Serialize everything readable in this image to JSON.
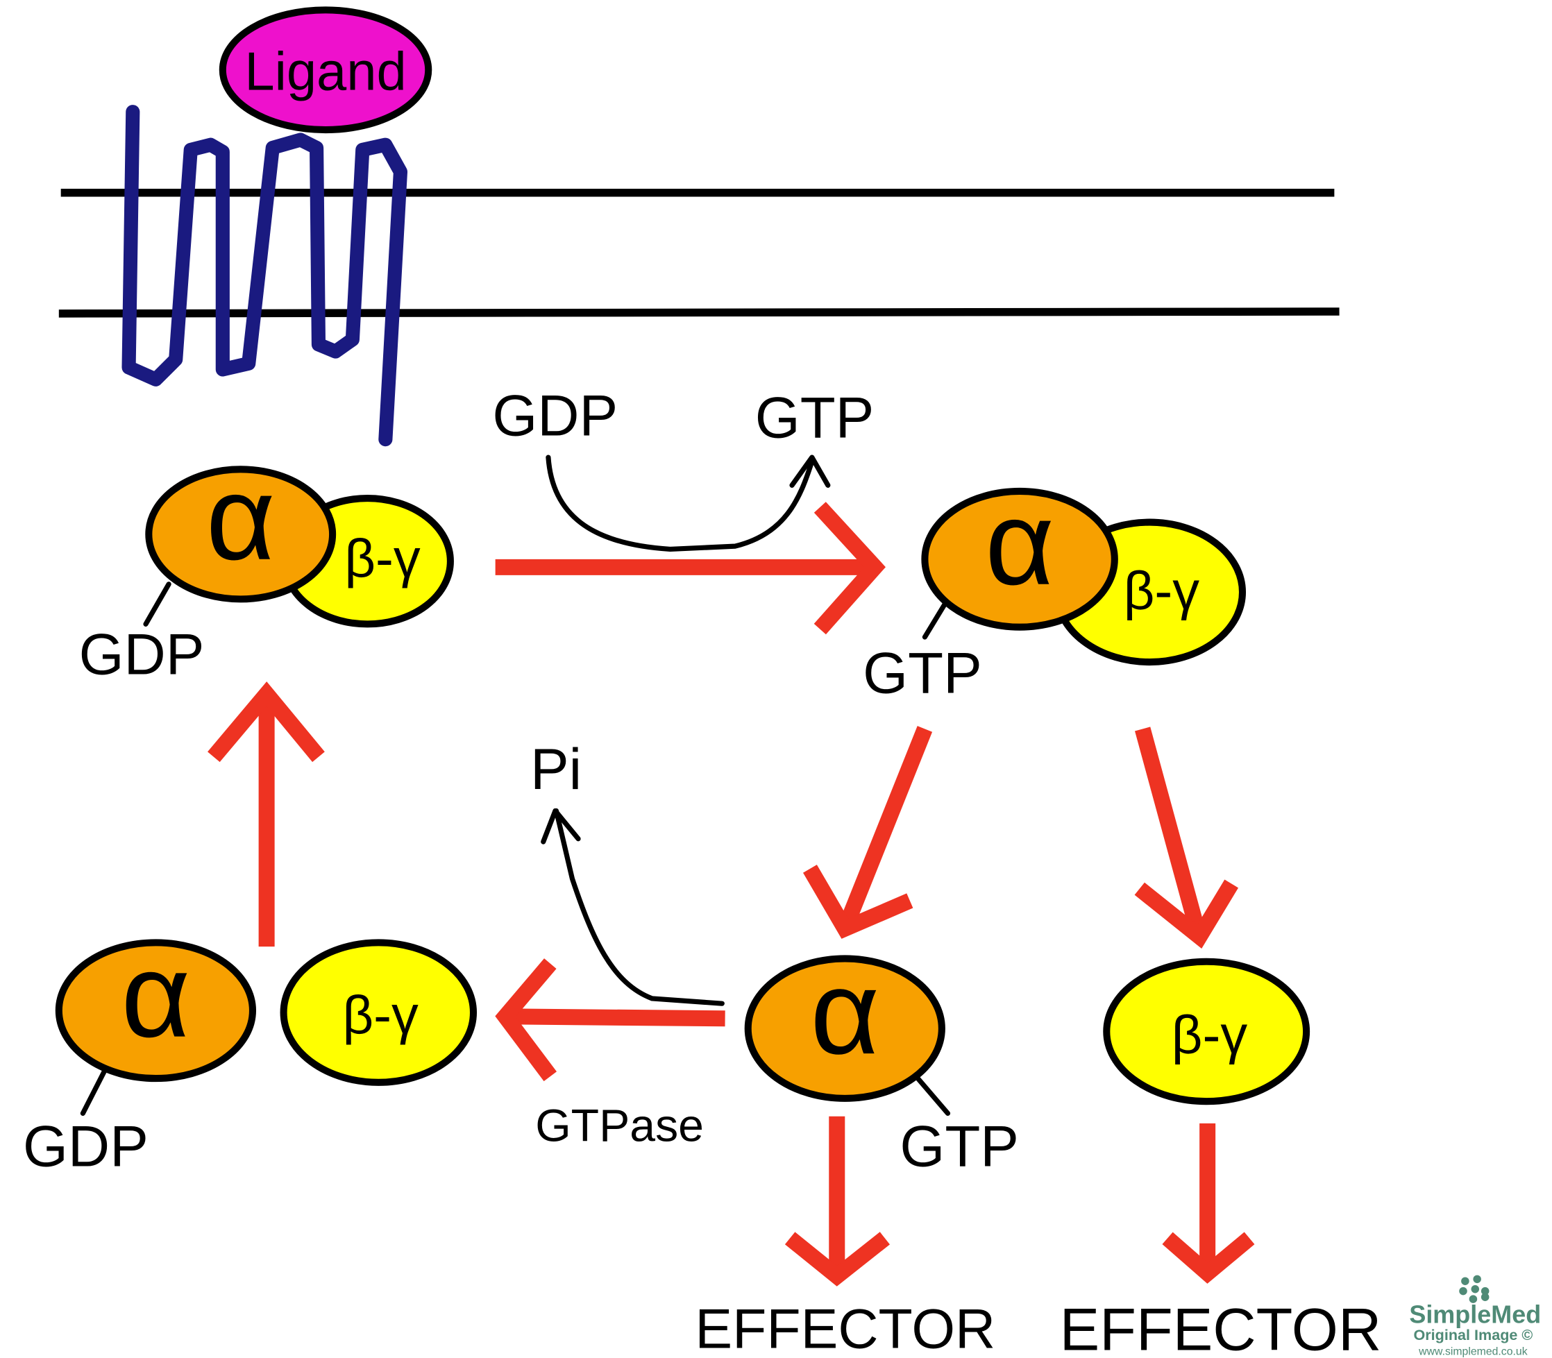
{
  "colors": {
    "alpha_fill": "#f7a000",
    "beta_gamma_fill": "#ffff00",
    "ligand_fill": "#ee11cc",
    "receptor": "#1a1a80",
    "arrow_red": "#ee3322",
    "logo": "#4f8a76"
  },
  "ligand": "Ligand",
  "subunits": {
    "alpha": "α",
    "beta_gamma": "β-γ"
  },
  "labels": {
    "inactive_gdp": "GDP",
    "exchange_gdp": "GDP",
    "exchange_gtp": "GTP",
    "active_gtp": "GTP",
    "alpha_gtp": "GTP",
    "free_gdp": "GDP",
    "pi": "Pi",
    "gtpase": "GTPase",
    "effector_alpha": "EFFECTOR",
    "effector_beta_gamma": "EFFECTOR"
  },
  "logo": {
    "brand": "SimpleMed",
    "tagline": "Original Image ©",
    "url": "www.simplemed.co.uk"
  }
}
